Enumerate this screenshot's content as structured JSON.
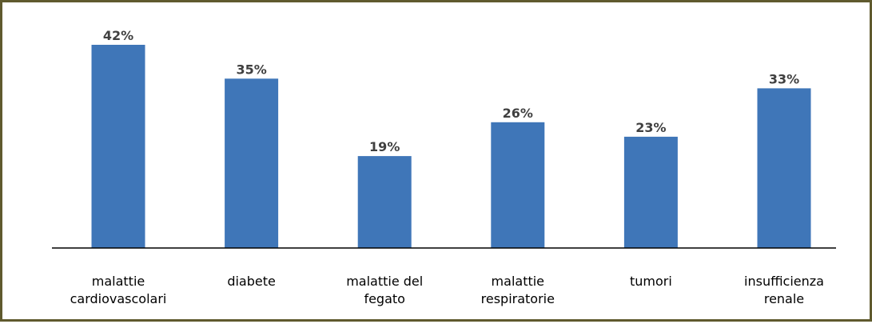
{
  "chart_data": {
    "type": "bar",
    "categories": [
      [
        "malattie",
        "cardiovascolari"
      ],
      [
        "diabete"
      ],
      [
        "malattie del",
        "fegato"
      ],
      [
        "malattie",
        "respiratorie"
      ],
      [
        "tumori"
      ],
      [
        "insufficienza",
        "renale"
      ]
    ],
    "values": [
      42,
      35,
      19,
      26,
      23,
      33
    ],
    "value_labels": [
      "42%",
      "35%",
      "19%",
      "26%",
      "23%",
      "33%"
    ],
    "unit": "%",
    "ylim": [
      0,
      42
    ],
    "grid": false,
    "legend": "none",
    "bar_color": "#3f76b8",
    "axis_color": "#000000",
    "label_color": "#404040"
  }
}
